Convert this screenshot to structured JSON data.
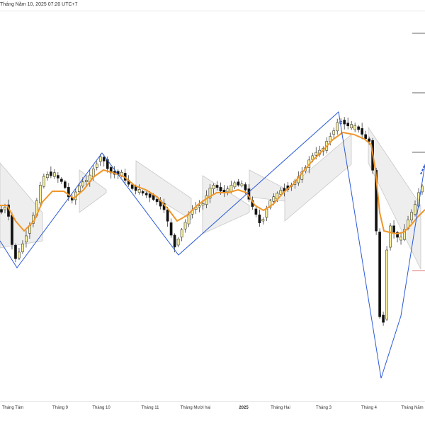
{
  "header": {
    "timestamp": "Tháng Năm 10, 2025 07:20 UTC+7"
  },
  "colors": {
    "candle_up_fill": "#f6ef9e",
    "candle_down_fill": "#111111",
    "ema_line": "#f0962a",
    "zigzag_line": "#2a5ad8",
    "band_fill": "#e8e8e8",
    "band_edge": "#c8c8c8",
    "level_line": "#333333",
    "level_line_red": "#d84444",
    "axis_text": "#333333"
  },
  "chart_data": {
    "type": "candlestick",
    "x_labels": [
      "Tháng Tám",
      "Tháng 9",
      "Tháng 10",
      "Tháng 11",
      "Tháng Mười hai",
      "2025",
      "Tháng Hai",
      "Tháng 3",
      "Tháng 4",
      "Tháng Năm"
    ],
    "bold_labels": [
      "2025"
    ],
    "ylim": [
      0,
      600
    ],
    "close_anchors": [
      [
        0,
        300
      ],
      [
        10,
        288
      ],
      [
        20,
        370
      ],
      [
        34,
        340
      ],
      [
        48,
        300
      ],
      [
        60,
        250
      ],
      [
        74,
        244
      ],
      [
        90,
        260
      ],
      [
        100,
        286
      ],
      [
        110,
        264
      ],
      [
        126,
        250
      ],
      [
        142,
        220
      ],
      [
        156,
        244
      ],
      [
        170,
        244
      ],
      [
        184,
        264
      ],
      [
        200,
        272
      ],
      [
        216,
        280
      ],
      [
        232,
        295
      ],
      [
        246,
        350
      ],
      [
        258,
        320
      ],
      [
        272,
        295
      ],
      [
        286,
        288
      ],
      [
        300,
        260
      ],
      [
        316,
        272
      ],
      [
        332,
        258
      ],
      [
        344,
        262
      ],
      [
        356,
        292
      ],
      [
        368,
        318
      ],
      [
        380,
        284
      ],
      [
        396,
        270
      ],
      [
        410,
        262
      ],
      [
        424,
        248
      ],
      [
        440,
        220
      ],
      [
        456,
        210
      ],
      [
        472,
        182
      ],
      [
        478,
        170
      ],
      [
        494,
        178
      ],
      [
        506,
        182
      ],
      [
        516,
        196
      ],
      [
        522,
        200
      ],
      [
        528,
        258
      ],
      [
        534,
        390
      ],
      [
        538,
        500
      ],
      [
        542,
        440
      ],
      [
        548,
        310
      ],
      [
        556,
        330
      ],
      [
        566,
        338
      ],
      [
        576,
        310
      ],
      [
        586,
        290
      ],
      [
        594,
        262
      ]
    ],
    "ema_anchors": [
      [
        0,
        290
      ],
      [
        10,
        290
      ],
      [
        22,
        312
      ],
      [
        34,
        326
      ],
      [
        48,
        312
      ],
      [
        60,
        285
      ],
      [
        74,
        270
      ],
      [
        90,
        270
      ],
      [
        104,
        280
      ],
      [
        118,
        268
      ],
      [
        132,
        250
      ],
      [
        146,
        240
      ],
      [
        160,
        244
      ],
      [
        176,
        250
      ],
      [
        190,
        262
      ],
      [
        206,
        268
      ],
      [
        222,
        278
      ],
      [
        238,
        296
      ],
      [
        250,
        312
      ],
      [
        264,
        304
      ],
      [
        278,
        290
      ],
      [
        292,
        280
      ],
      [
        306,
        272
      ],
      [
        322,
        272
      ],
      [
        336,
        268
      ],
      [
        348,
        272
      ],
      [
        360,
        290
      ],
      [
        372,
        297
      ],
      [
        386,
        288
      ],
      [
        400,
        272
      ],
      [
        414,
        260
      ],
      [
        428,
        242
      ],
      [
        442,
        226
      ],
      [
        456,
        212
      ],
      [
        470,
        197
      ],
      [
        484,
        187
      ],
      [
        500,
        190
      ],
      [
        514,
        196
      ],
      [
        524,
        204
      ],
      [
        530,
        240
      ],
      [
        536,
        300
      ],
      [
        542,
        326
      ],
      [
        550,
        328
      ],
      [
        560,
        330
      ],
      [
        570,
        328
      ],
      [
        580,
        318
      ],
      [
        590,
        306
      ],
      [
        600,
        296
      ]
    ],
    "zigzag": [
      [
        0,
        340
      ],
      [
        24,
        378
      ],
      [
        144,
        216
      ],
      [
        252,
        360
      ],
      [
        478,
        158
      ],
      [
        538,
        534
      ],
      [
        566,
        446
      ],
      [
        600,
        232
      ]
    ],
    "band_segments": [
      [
        [
          0,
          230
        ],
        [
          60,
          300
        ],
        [
          0,
          350
        ],
        [
          60,
          340
        ]
      ],
      [
        [
          112,
          240
        ],
        [
          150,
          268
        ],
        [
          112,
          300
        ],
        [
          150,
          272
        ]
      ],
      [
        [
          192,
          227
        ],
        [
          270,
          280
        ],
        [
          192,
          262
        ],
        [
          270,
          310
        ]
      ],
      [
        [
          286,
          248
        ],
        [
          352,
          290
        ],
        [
          286,
          330
        ],
        [
          352,
          300
        ]
      ],
      [
        [
          352,
          240
        ],
        [
          402,
          266
        ],
        [
          352,
          278
        ],
        [
          402,
          284
        ]
      ],
      [
        [
          402,
          270
        ],
        [
          496,
          190
        ],
        [
          402,
          312
        ],
        [
          496,
          232
        ]
      ],
      [
        [
          520,
          180
        ],
        [
          594,
          290
        ],
        [
          520,
          230
        ],
        [
          594,
          380
        ]
      ]
    ],
    "levels": [
      {
        "y": 47,
        "x_start": 582,
        "color": "level_line"
      },
      {
        "y": 131,
        "x_start": 582,
        "color": "level_line"
      },
      {
        "y": 215,
        "x_start": 582,
        "color": "level_line"
      },
      {
        "y": 382,
        "x_start": 582,
        "color": "level_line_red"
      }
    ],
    "candle_count": 120,
    "candle_x_range": [
      2,
      596
    ]
  }
}
